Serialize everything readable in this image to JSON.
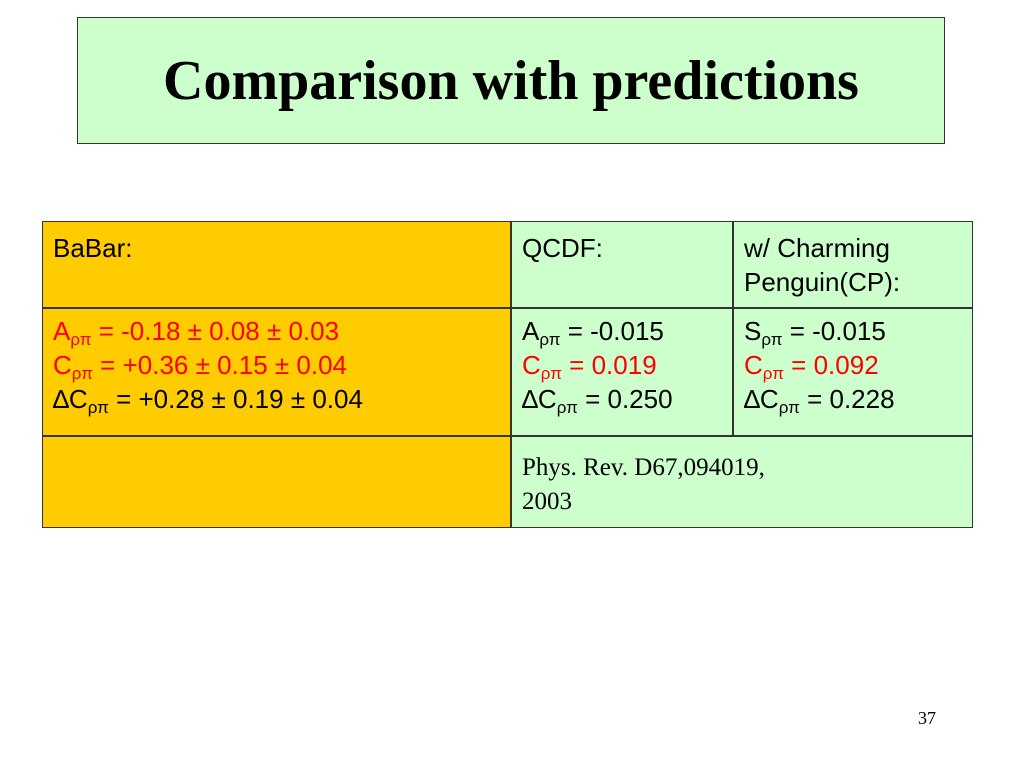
{
  "title": "Comparison with predictions",
  "babar": {
    "header": "BaBar:",
    "lines": [
      {
        "sym": "A",
        "sub": "ρπ",
        "val": " =  -0.18 ±  0.08 ± 0.03",
        "color": "#ff0000"
      },
      {
        "sym": "C",
        "sub": "ρπ",
        "val": " =  +0.36 ±  0.15 ± 0.04",
        "color": "#ff0000"
      },
      {
        "sym": "∆C",
        "sub": "ρπ",
        "val": " = +0.28 ±  0.19 ± 0.04",
        "color": "#000000"
      }
    ]
  },
  "qcdf": {
    "header": "QCDF:",
    "lines": [
      {
        "sym": "A",
        "sub": "ρπ",
        "val": " =  -0.015",
        "color": "#000000"
      },
      {
        "sym": "C",
        "sub": "ρπ",
        "val": " =   0.019",
        "color": "#ff0000"
      },
      {
        "sym": "∆C",
        "sub": "ρπ",
        "val": " = 0.250",
        "color": "#000000"
      }
    ]
  },
  "cp": {
    "header_line1": "w/ Charming",
    "header_line2": "Penguin(CP):",
    "lines": [
      {
        "sym": "S",
        "sub": "ρπ",
        "val": " =  -0.015",
        "color": "#000000"
      },
      {
        "sym": "C",
        "sub": "ρπ",
        "val": " =   0.092",
        "color": "#ff0000"
      },
      {
        "sym": "∆C",
        "sub": "ρπ",
        "val": " = 0.228",
        "color": "#000000"
      }
    ]
  },
  "reference": {
    "line1": "Phys. Rev. D67,094019,",
    "line2": "2003"
  },
  "page_number": "37"
}
